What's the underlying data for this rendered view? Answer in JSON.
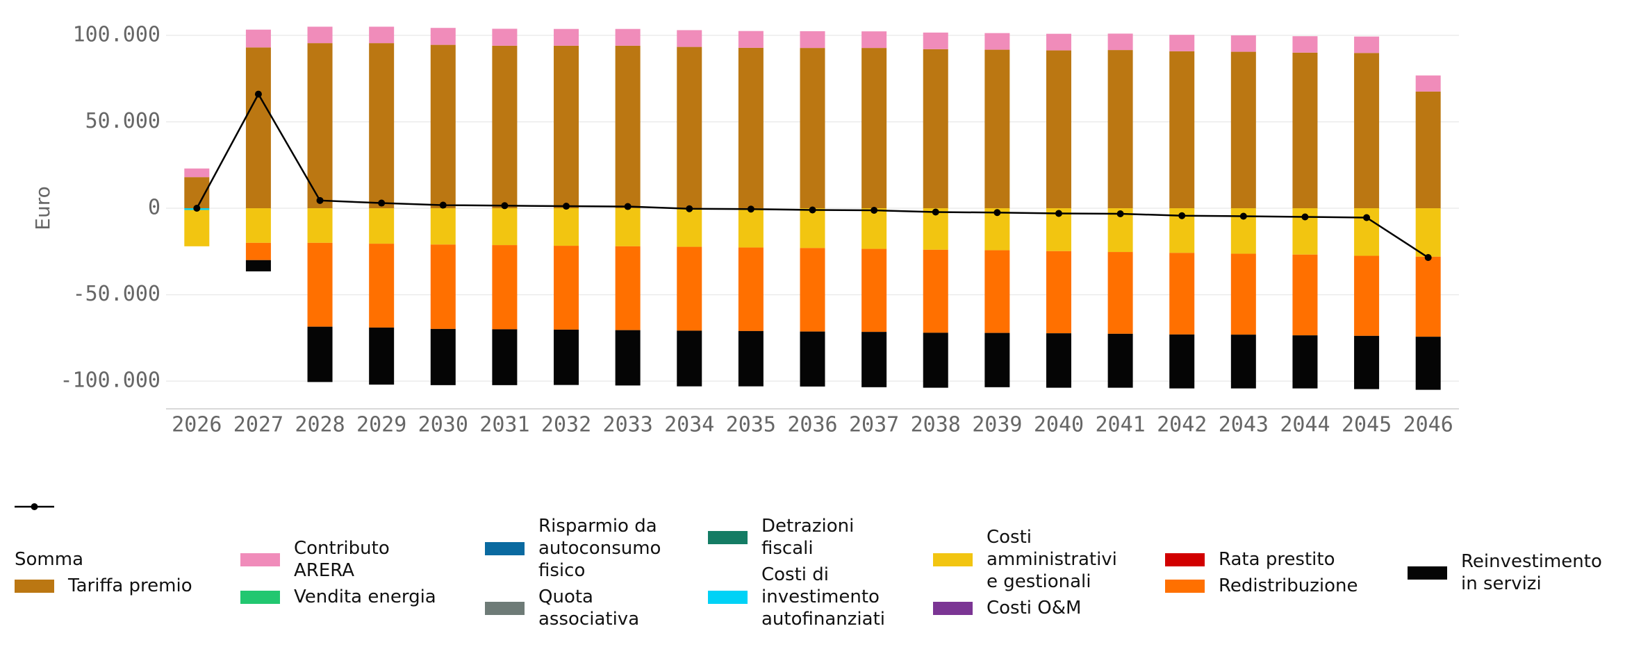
{
  "chart_data": {
    "type": "bar",
    "stacked": true,
    "ylabel": "Euro",
    "categories": [
      "2026",
      "2027",
      "2028",
      "2029",
      "2030",
      "2031",
      "2032",
      "2033",
      "2034",
      "2035",
      "2036",
      "2037",
      "2038",
      "2039",
      "2040",
      "2041",
      "2042",
      "2043",
      "2044",
      "2045",
      "2046"
    ],
    "ylim": [
      -116000,
      110000
    ],
    "yticks": [
      {
        "value": -100000,
        "label": "-100.000"
      },
      {
        "value": -50000,
        "label": "-50.000"
      },
      0,
      {
        "value": 50000,
        "label": "50.000"
      },
      {
        "value": 100000,
        "label": "100.000"
      }
    ],
    "grid": true,
    "series": [
      {
        "name": "Somma",
        "type": "line",
        "color": "#000000",
        "values": [
          0,
          66000,
          4500,
          3000,
          1800,
          1500,
          1200,
          1000,
          -300,
          -500,
          -1000,
          -1200,
          -2200,
          -2500,
          -3000,
          -3200,
          -4300,
          -4600,
          -5000,
          -5400,
          -28500
        ]
      },
      {
        "name": "Tariffa premio",
        "color": "#bb7712",
        "values": [
          18000,
          93000,
          95500,
          95500,
          94500,
          94000,
          94000,
          94000,
          93300,
          92800,
          92700,
          92700,
          92000,
          91700,
          91300,
          91500,
          90800,
          90500,
          90000,
          89800,
          67500
        ]
      },
      {
        "name": "Contributo ARERA",
        "color": "#f08cba",
        "values": [
          5000,
          10300,
          9500,
          9500,
          9800,
          9800,
          9700,
          9700,
          9700,
          9700,
          9700,
          9600,
          9600,
          9600,
          9600,
          9500,
          9500,
          9500,
          9500,
          9500,
          9300
        ]
      },
      {
        "name": "Vendita energia",
        "color": "#22c770",
        "values": [
          0,
          0,
          0,
          0,
          0,
          0,
          0,
          0,
          0,
          0,
          0,
          0,
          0,
          0,
          0,
          0,
          0,
          0,
          0,
          0,
          0
        ]
      },
      {
        "name": "Risparmio da autoconsumo fisico",
        "color": "#0a6aa0",
        "values": [
          0,
          0,
          0,
          0,
          0,
          0,
          0,
          0,
          0,
          0,
          0,
          0,
          0,
          0,
          0,
          0,
          0,
          0,
          0,
          0,
          0
        ]
      },
      {
        "name": "Quota associativa",
        "color": "#6e7b77",
        "values": [
          0,
          0,
          0,
          0,
          0,
          0,
          0,
          0,
          0,
          0,
          0,
          0,
          0,
          0,
          0,
          0,
          0,
          0,
          0,
          0,
          0
        ]
      },
      {
        "name": "Detrazioni fiscali",
        "color": "#147c64",
        "values": [
          0,
          0,
          0,
          0,
          0,
          0,
          0,
          0,
          0,
          0,
          0,
          0,
          0,
          0,
          0,
          0,
          0,
          0,
          0,
          0,
          0
        ]
      },
      {
        "name": "Costi di investimento autofinanziati",
        "color": "#00d2f6",
        "values": [
          -1000,
          0,
          0,
          0,
          0,
          0,
          0,
          0,
          0,
          0,
          0,
          0,
          0,
          0,
          0,
          0,
          0,
          0,
          0,
          0,
          0
        ]
      },
      {
        "name": "Costi amministrativi e gestionali",
        "color": "#f2c511",
        "values": [
          -21000,
          -20000,
          -20000,
          -20500,
          -21000,
          -21300,
          -21700,
          -22000,
          -22300,
          -22700,
          -23000,
          -23500,
          -24000,
          -24300,
          -24800,
          -25300,
          -25800,
          -26300,
          -26800,
          -27500,
          -28000
        ]
      },
      {
        "name": "Costi O&M",
        "color": "#7b3594",
        "values": [
          0,
          0,
          0,
          0,
          0,
          0,
          0,
          0,
          0,
          0,
          0,
          0,
          0,
          0,
          0,
          0,
          0,
          0,
          0,
          0,
          0
        ]
      },
      {
        "name": "Rata prestito",
        "color": "#d10000",
        "values": [
          0,
          0,
          0,
          0,
          0,
          0,
          0,
          0,
          0,
          0,
          0,
          0,
          0,
          0,
          0,
          0,
          0,
          0,
          0,
          0,
          0
        ]
      },
      {
        "name": "Redistribuzione",
        "color": "#ff7000",
        "values": [
          0,
          -10000,
          -48500,
          -48500,
          -48800,
          -48700,
          -48500,
          -48500,
          -48500,
          -48300,
          -48300,
          -48000,
          -48000,
          -47800,
          -47500,
          -47300,
          -47200,
          -46800,
          -46700,
          -46300,
          -46300
        ]
      },
      {
        "name": "Reinvestimento in servizi",
        "color": "#050505",
        "values": [
          0,
          -6500,
          -32000,
          -33000,
          -32500,
          -32300,
          -32000,
          -32000,
          -32200,
          -32000,
          -31800,
          -32000,
          -31800,
          -31400,
          -31500,
          -31200,
          -31200,
          -31100,
          -30700,
          -30800,
          -30700
        ]
      }
    ]
  }
}
